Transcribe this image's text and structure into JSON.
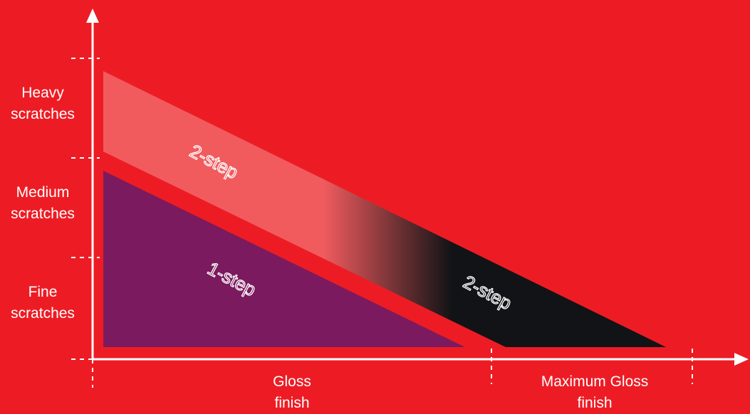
{
  "y_axis": {
    "levels": [
      {
        "line1": "Heavy",
        "line2": "scratches"
      },
      {
        "line1": "Medium",
        "line2": "scratches"
      },
      {
        "line1": "Fine",
        "line2": "scratches"
      }
    ]
  },
  "x_axis": {
    "levels": [
      {
        "line1": "Gloss",
        "line2": "finish"
      },
      {
        "line1": "Maximum Gloss",
        "line2": "finish"
      }
    ]
  },
  "bands": {
    "upper_left_label": "2-step",
    "upper_right_label": "2-step",
    "lower_label": "1-step"
  },
  "colors": {
    "background": "#ed1c24",
    "axis": "#ffffff",
    "two_step_light": "#f15b5e",
    "two_step_dark": "#111316",
    "one_step": "#7b1a5e"
  }
}
